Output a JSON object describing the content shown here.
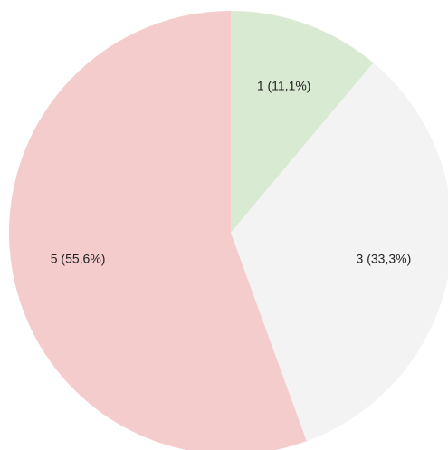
{
  "chart_data": {
    "type": "pie",
    "categories": [
      null,
      null,
      null
    ],
    "values": [
      1,
      3,
      5
    ],
    "value_labels": [
      "1 (11,1%)",
      "3 (33,3%)",
      "5 (55,6%)"
    ],
    "colors": [
      "#d9ead3",
      "#f3f3f3",
      "#f4cccc"
    ]
  }
}
